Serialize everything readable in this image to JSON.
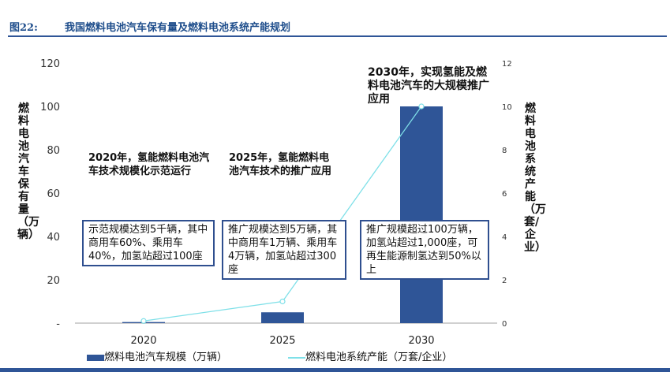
{
  "header": {
    "figure_no": "图22:",
    "title": "我国燃料电池汽车保有量及燃料电池系统产能规划"
  },
  "chart_data": {
    "type": "bar+line",
    "categories": [
      "2020",
      "2025",
      "2030"
    ],
    "series": [
      {
        "name": "燃料电池汽车规模（万辆）",
        "type": "bar",
        "axis": "left",
        "values": [
          0.5,
          5,
          100
        ],
        "color": "#2f5597"
      },
      {
        "name": "燃料电池系统产能（万套/企业）",
        "type": "line",
        "axis": "right",
        "values": [
          0.1,
          1,
          10
        ],
        "color": "#7fe0e8"
      }
    ],
    "ylabel": "燃料电池汽车保有量（万辆）",
    "y2label": "燃料电池系统产能（万套/企业）",
    "ylim": [
      0,
      120
    ],
    "y2lim": [
      0,
      12
    ],
    "yticks": [
      "-",
      "20",
      "40",
      "60",
      "80",
      "100",
      "120"
    ],
    "y2ticks": [
      "0",
      "2",
      "4",
      "6",
      "8",
      "10",
      "12"
    ],
    "legend": "bottom",
    "annotations": {
      "notes": [
        "2020年，氢能燃料电池汽车技术规模化示范运行",
        "2025年，氢能燃料电池汽车技术的推广应用",
        "2030年，实现氢能及燃料电池汽车的大规模推广应用"
      ],
      "boxes": [
        "示范规模达到5千辆，其中商用车60%、乘用车40%，加氢站超过100座",
        "推广规模达到5万辆，其中商用车1万辆、乘用车4万辆，加氢站超过300座",
        "推广规模超过100万辆，加氢站超过1,000座，可再生能源制氢达到50%以上"
      ]
    }
  }
}
